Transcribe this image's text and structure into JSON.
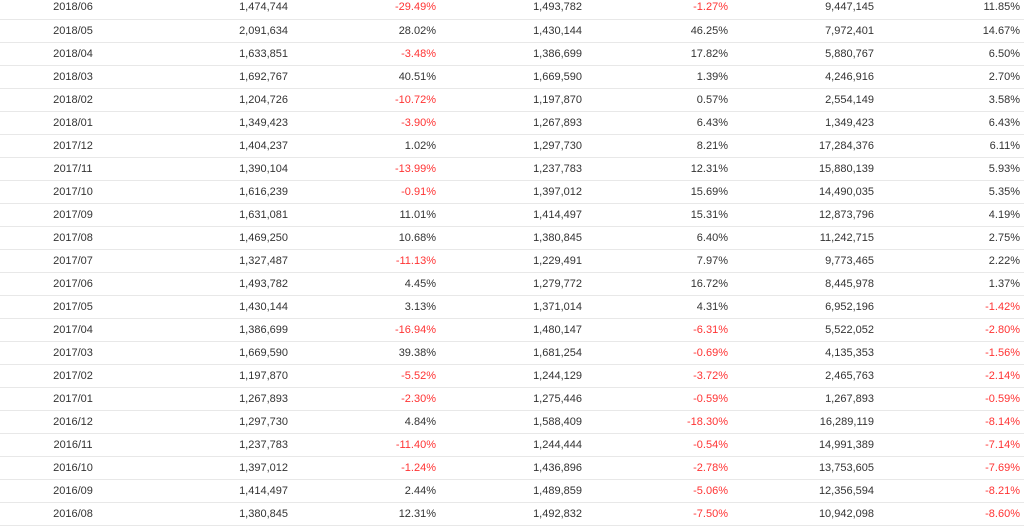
{
  "colors": {
    "negative": "#ff3333",
    "text": "#333333",
    "border": "#e8e8e8"
  },
  "rows": [
    [
      "2018/06",
      "1,474,744",
      "-29.49%",
      "1,493,782",
      "-1.27%",
      "9,447,145",
      "11.85%"
    ],
    [
      "2018/05",
      "2,091,634",
      "28.02%",
      "1,430,144",
      "46.25%",
      "7,972,401",
      "14.67%"
    ],
    [
      "2018/04",
      "1,633,851",
      "-3.48%",
      "1,386,699",
      "17.82%",
      "5,880,767",
      "6.50%"
    ],
    [
      "2018/03",
      "1,692,767",
      "40.51%",
      "1,669,590",
      "1.39%",
      "4,246,916",
      "2.70%"
    ],
    [
      "2018/02",
      "1,204,726",
      "-10.72%",
      "1,197,870",
      "0.57%",
      "2,554,149",
      "3.58%"
    ],
    [
      "2018/01",
      "1,349,423",
      "-3.90%",
      "1,267,893",
      "6.43%",
      "1,349,423",
      "6.43%"
    ],
    [
      "2017/12",
      "1,404,237",
      "1.02%",
      "1,297,730",
      "8.21%",
      "17,284,376",
      "6.11%"
    ],
    [
      "2017/11",
      "1,390,104",
      "-13.99%",
      "1,237,783",
      "12.31%",
      "15,880,139",
      "5.93%"
    ],
    [
      "2017/10",
      "1,616,239",
      "-0.91%",
      "1,397,012",
      "15.69%",
      "14,490,035",
      "5.35%"
    ],
    [
      "2017/09",
      "1,631,081",
      "11.01%",
      "1,414,497",
      "15.31%",
      "12,873,796",
      "4.19%"
    ],
    [
      "2017/08",
      "1,469,250",
      "10.68%",
      "1,380,845",
      "6.40%",
      "11,242,715",
      "2.75%"
    ],
    [
      "2017/07",
      "1,327,487",
      "-11.13%",
      "1,229,491",
      "7.97%",
      "9,773,465",
      "2.22%"
    ],
    [
      "2017/06",
      "1,493,782",
      "4.45%",
      "1,279,772",
      "16.72%",
      "8,445,978",
      "1.37%"
    ],
    [
      "2017/05",
      "1,430,144",
      "3.13%",
      "1,371,014",
      "4.31%",
      "6,952,196",
      "-1.42%"
    ],
    [
      "2017/04",
      "1,386,699",
      "-16.94%",
      "1,480,147",
      "-6.31%",
      "5,522,052",
      "-2.80%"
    ],
    [
      "2017/03",
      "1,669,590",
      "39.38%",
      "1,681,254",
      "-0.69%",
      "4,135,353",
      "-1.56%"
    ],
    [
      "2017/02",
      "1,197,870",
      "-5.52%",
      "1,244,129",
      "-3.72%",
      "2,465,763",
      "-2.14%"
    ],
    [
      "2017/01",
      "1,267,893",
      "-2.30%",
      "1,275,446",
      "-0.59%",
      "1,267,893",
      "-0.59%"
    ],
    [
      "2016/12",
      "1,297,730",
      "4.84%",
      "1,588,409",
      "-18.30%",
      "16,289,119",
      "-8.14%"
    ],
    [
      "2016/11",
      "1,237,783",
      "-11.40%",
      "1,244,444",
      "-0.54%",
      "14,991,389",
      "-7.14%"
    ],
    [
      "2016/10",
      "1,397,012",
      "-1.24%",
      "1,436,896",
      "-2.78%",
      "13,753,605",
      "-7.69%"
    ],
    [
      "2016/09",
      "1,414,497",
      "2.44%",
      "1,489,859",
      "-5.06%",
      "12,356,594",
      "-8.21%"
    ],
    [
      "2016/08",
      "1,380,845",
      "12.31%",
      "1,492,832",
      "-7.50%",
      "10,942,098",
      "-8.60%"
    ]
  ]
}
